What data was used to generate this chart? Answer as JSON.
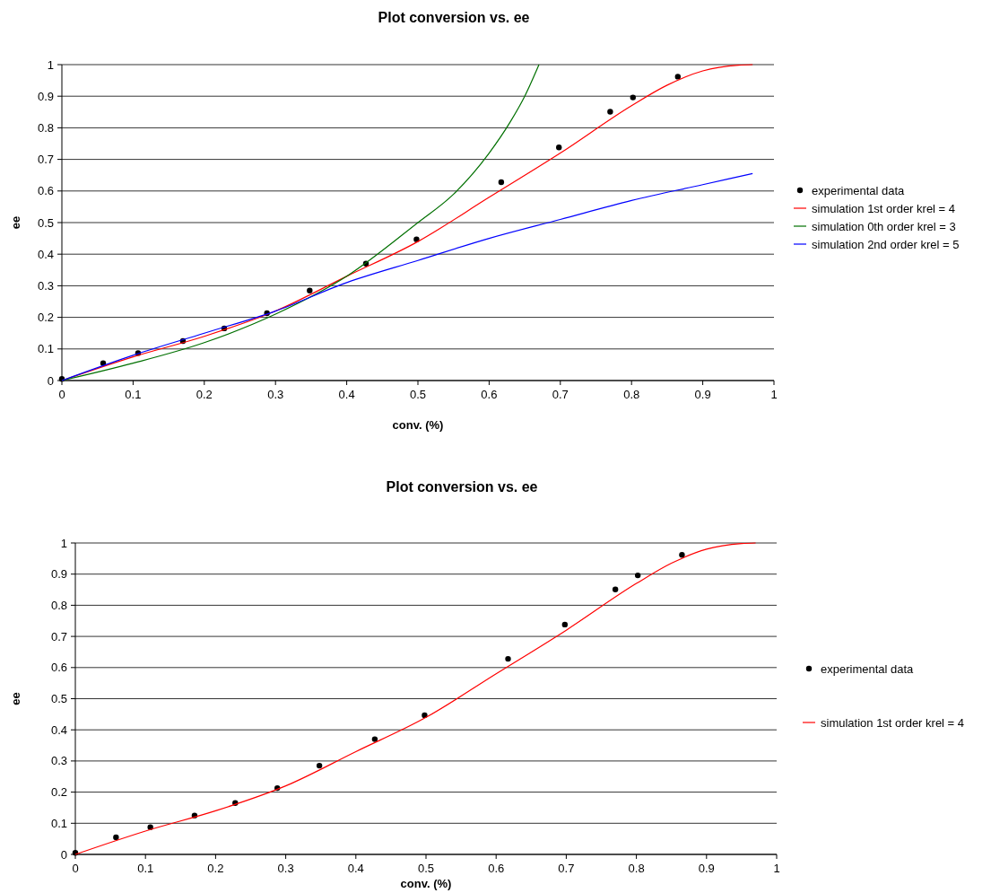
{
  "chart_data": [
    {
      "type": "scatter",
      "title": "Plot conversion vs. ee",
      "xlabel": "conv. (%)",
      "ylabel": "ee",
      "xlim": [
        0,
        1
      ],
      "ylim": [
        0,
        1
      ],
      "xticks": [
        0,
        0.1,
        0.2,
        0.3,
        0.4,
        0.5,
        0.6,
        0.7,
        0.8,
        0.9,
        1
      ],
      "yticks": [
        0,
        0.1,
        0.2,
        0.3,
        0.4,
        0.5,
        0.6,
        0.7,
        0.8,
        0.9,
        1
      ],
      "grid": "y",
      "legend": "right",
      "series": [
        {
          "name": "experimental data",
          "marker": "circle",
          "color": "#000000",
          "x": [
            0,
            0.058,
            0.107,
            0.17,
            0.228,
            0.288,
            0.348,
            0.427,
            0.498,
            0.617,
            0.698,
            0.77,
            0.802,
            0.865
          ],
          "values": [
            0.005,
            0.055,
            0.087,
            0.125,
            0.165,
            0.213,
            0.285,
            0.37,
            0.447,
            0.628,
            0.738,
            0.851,
            0.896,
            0.962
          ]
        },
        {
          "name": "simulation 1st order krel = 4",
          "type": "line",
          "color": "#ff0000",
          "x": [
            0,
            0.1,
            0.2,
            0.3,
            0.4,
            0.5,
            0.6,
            0.7,
            0.8,
            0.85,
            0.9,
            0.95,
            0.97
          ],
          "values": [
            0,
            0.075,
            0.14,
            0.22,
            0.33,
            0.44,
            0.58,
            0.72,
            0.87,
            0.935,
            0.98,
            0.998,
            1
          ]
        },
        {
          "name": "simulation 0th order krel = 3",
          "type": "line",
          "color": "#007000",
          "x": [
            0,
            0.1,
            0.2,
            0.3,
            0.4,
            0.5,
            0.55,
            0.6,
            0.63,
            0.65,
            0.67
          ],
          "values": [
            0,
            0.055,
            0.12,
            0.21,
            0.33,
            0.5,
            0.59,
            0.72,
            0.82,
            0.9,
            1
          ]
        },
        {
          "name": "simulation 2nd order krel = 5",
          "type": "line",
          "color": "#0000ff",
          "x": [
            0,
            0.1,
            0.2,
            0.3,
            0.4,
            0.5,
            0.6,
            0.7,
            0.8,
            0.9,
            0.97
          ],
          "values": [
            0,
            0.08,
            0.15,
            0.22,
            0.31,
            0.38,
            0.45,
            0.51,
            0.57,
            0.62,
            0.655
          ]
        }
      ]
    },
    {
      "type": "scatter",
      "title": "Plot conversion vs. ee",
      "xlabel": "conv. (%)",
      "ylabel": "ee",
      "xlim": [
        0,
        1
      ],
      "ylim": [
        0,
        1
      ],
      "xticks": [
        0,
        0.1,
        0.2,
        0.3,
        0.4,
        0.5,
        0.6,
        0.7,
        0.8,
        0.9,
        1
      ],
      "yticks": [
        0,
        0.1,
        0.2,
        0.3,
        0.4,
        0.5,
        0.6,
        0.7,
        0.8,
        0.9,
        1
      ],
      "grid": "y",
      "legend": "right",
      "series": [
        {
          "name": "experimental data",
          "marker": "circle",
          "color": "#000000",
          "x": [
            0,
            0.058,
            0.107,
            0.17,
            0.228,
            0.288,
            0.348,
            0.427,
            0.498,
            0.617,
            0.698,
            0.77,
            0.802,
            0.865
          ],
          "values": [
            0.005,
            0.055,
            0.087,
            0.125,
            0.165,
            0.213,
            0.285,
            0.37,
            0.447,
            0.628,
            0.738,
            0.851,
            0.896,
            0.962
          ]
        },
        {
          "name": "simulation 1st order krel = 4",
          "type": "line",
          "color": "#ff0000",
          "x": [
            0,
            0.1,
            0.2,
            0.3,
            0.4,
            0.5,
            0.6,
            0.7,
            0.8,
            0.85,
            0.9,
            0.95,
            0.97
          ],
          "values": [
            0,
            0.075,
            0.14,
            0.22,
            0.33,
            0.44,
            0.58,
            0.72,
            0.87,
            0.935,
            0.98,
            0.998,
            1
          ]
        }
      ]
    }
  ]
}
